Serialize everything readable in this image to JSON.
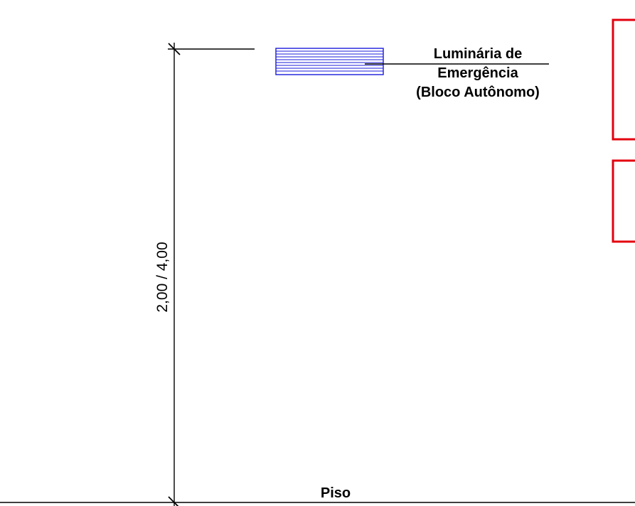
{
  "annotation": {
    "luminaire_label": [
      "Luminária de",
      "Emergência",
      "(Bloco Autônomo)"
    ],
    "floor_label": "Piso",
    "dimension_label": "2,00 / 4,00"
  },
  "colors": {
    "line": "#000000",
    "luminaire_hatch": "#1a1adc",
    "red_frame": "#e3000f",
    "background": "#ffffff"
  },
  "icons": {
    "luminaire": "hatched-rectangle-symbol",
    "dimension_ticks": "slash-tick-marks"
  }
}
